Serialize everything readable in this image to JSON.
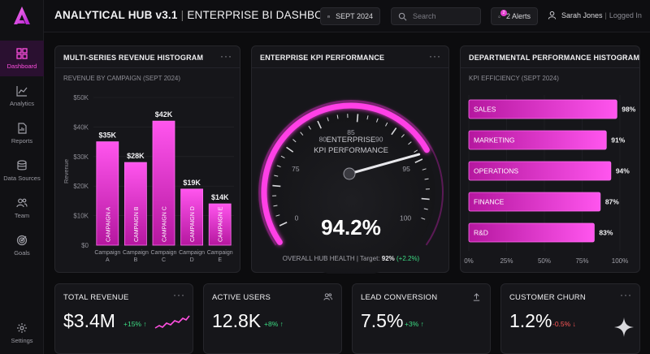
{
  "app": {
    "title": "ANALYTICAL HUB v3.1",
    "subtitle": "ENTERPRISE BI DASHBOARD"
  },
  "header": {
    "date": "SEPT 2024",
    "search_placeholder": "Search",
    "alerts_label": "2 Alerts",
    "alerts_count": "2",
    "user_name": "Sarah Jones",
    "user_status": "Logged In"
  },
  "sidebar": {
    "items": [
      {
        "label": "Dashboard",
        "icon": "dashboard-icon",
        "active": true
      },
      {
        "label": "Analytics",
        "icon": "analytics-icon",
        "active": false
      },
      {
        "label": "Reports",
        "icon": "reports-icon",
        "active": false
      },
      {
        "label": "Data Sources",
        "icon": "database-icon",
        "active": false
      },
      {
        "label": "Team",
        "icon": "team-icon",
        "active": false
      },
      {
        "label": "Goals",
        "icon": "goals-icon",
        "active": false
      }
    ],
    "settings_label": "Settings"
  },
  "panels": {
    "revenue": {
      "title": "MULTI-SERIES REVENUE HISTOGRAM",
      "subtitle": "REVENUE BY CAMPAIGN (SEPT 2024)",
      "menu": "···"
    },
    "kpi": {
      "title": "ENTERPRISE KPI PERFORMANCE",
      "menu": "···"
    },
    "dept": {
      "title": "DEPARTMENTAL PERFORMANCE HISTOGRAM",
      "subtitle": "KPI EFFICIENCY (SEPT 2024)",
      "menu": "···"
    }
  },
  "chart_data": [
    {
      "type": "bar",
      "ylabel": "Revenue",
      "yticks": [
        "$0",
        "$10K",
        "$20K",
        "$30K",
        "$40K",
        "$50K"
      ],
      "ylim": [
        0,
        50
      ],
      "categories": [
        "Campaign A",
        "Campaign B",
        "Campaign C",
        "Campaign D",
        "Campaign E"
      ],
      "bar_labels": [
        "CAMPAIGN A",
        "CAMPAIGN B",
        "CAMPAIGN C",
        "CAMPAIGN D",
        "CAMPAIGN E"
      ],
      "values": [
        35,
        28,
        42,
        19,
        14
      ],
      "data_labels": [
        "$35K",
        "$28K",
        "$42K",
        "$19K",
        "$14K"
      ],
      "color": "#e23ad0"
    },
    {
      "type": "gauge",
      "title_line1": "ENTERPRISE",
      "title_line2": "KPI PERFORMANCE",
      "ticks": [
        "0",
        "75",
        "80",
        "85",
        "90",
        "95",
        "100"
      ],
      "value": 94.2,
      "value_label": "94.2%",
      "footer_label": "OVERALL HUB HEALTH | Target:",
      "target": "92%",
      "delta": "(+2.2%)"
    },
    {
      "type": "bar",
      "orientation": "horizontal",
      "categories": [
        "SALES",
        "MARKETING",
        "OPERATIONS",
        "FINANCE",
        "R&D"
      ],
      "values": [
        98,
        91,
        94,
        87,
        83
      ],
      "value_labels": [
        "98%",
        "91%",
        "94%",
        "87%",
        "83%"
      ],
      "xticks": [
        "0%",
        "25%",
        "50%",
        "75%",
        "100%"
      ],
      "xlim": [
        0,
        100
      ],
      "color": "#e23ad0"
    }
  ],
  "kpis": [
    {
      "title": "TOTAL REVENUE",
      "value": "$3.4M",
      "delta": "+15% ↑",
      "trend": "pos",
      "icon": "dots-menu-icon",
      "menu": "···"
    },
    {
      "title": "ACTIVE USERS",
      "value": "12.8K",
      "delta": "+8% ↑",
      "trend": "pos",
      "icon": "users-icon"
    },
    {
      "title": "LEAD CONVERSION",
      "value": "7.5%",
      "delta": "+3% ↑",
      "trend": "pos",
      "icon": "upload-icon"
    },
    {
      "title": "CUSTOMER CHURN",
      "value": "1.2%",
      "delta": "-0.5% ↓",
      "trend": "neg",
      "icon": "dots-menu-icon",
      "menu": "···"
    }
  ],
  "colors": {
    "accent": "#e23ad0",
    "positive": "#3ddc84",
    "negative": "#ff5757"
  }
}
